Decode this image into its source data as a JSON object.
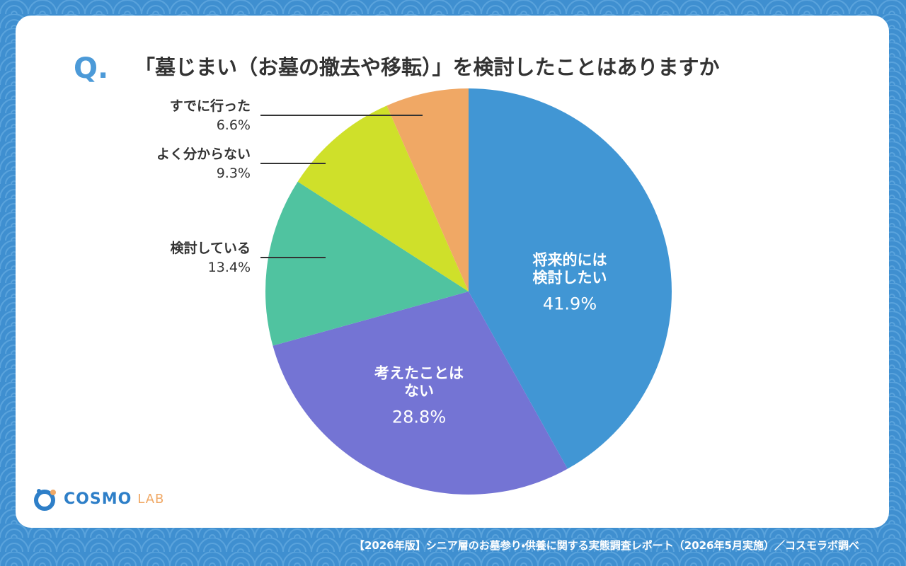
{
  "question_prefix": "Q.",
  "chart_data": {
    "type": "pie",
    "title": "「墓じまい（お墓の撤去や移転）」を検討したことはありますか",
    "categories": [
      "将来的には\n検討したい",
      "考えたことは\nない",
      "検討している",
      "よく分からない",
      "すでに行った"
    ],
    "values": [
      41.9,
      28.8,
      13.4,
      9.3,
      6.6
    ],
    "value_labels": [
      "41.9%",
      "28.8%",
      "13.4%",
      "9.3%",
      "6.6%"
    ],
    "colors": [
      "#4196d4",
      "#7474d4",
      "#50c3a0",
      "#cfe02a",
      "#f0a865"
    ]
  },
  "logo": {
    "text1": "COSMO",
    "text2": "LAB"
  },
  "footer": "【2026年版】シニア層のお墓参り・供養に関する実態調査レポート（2026年5月実施）／コスモラボ調べ"
}
